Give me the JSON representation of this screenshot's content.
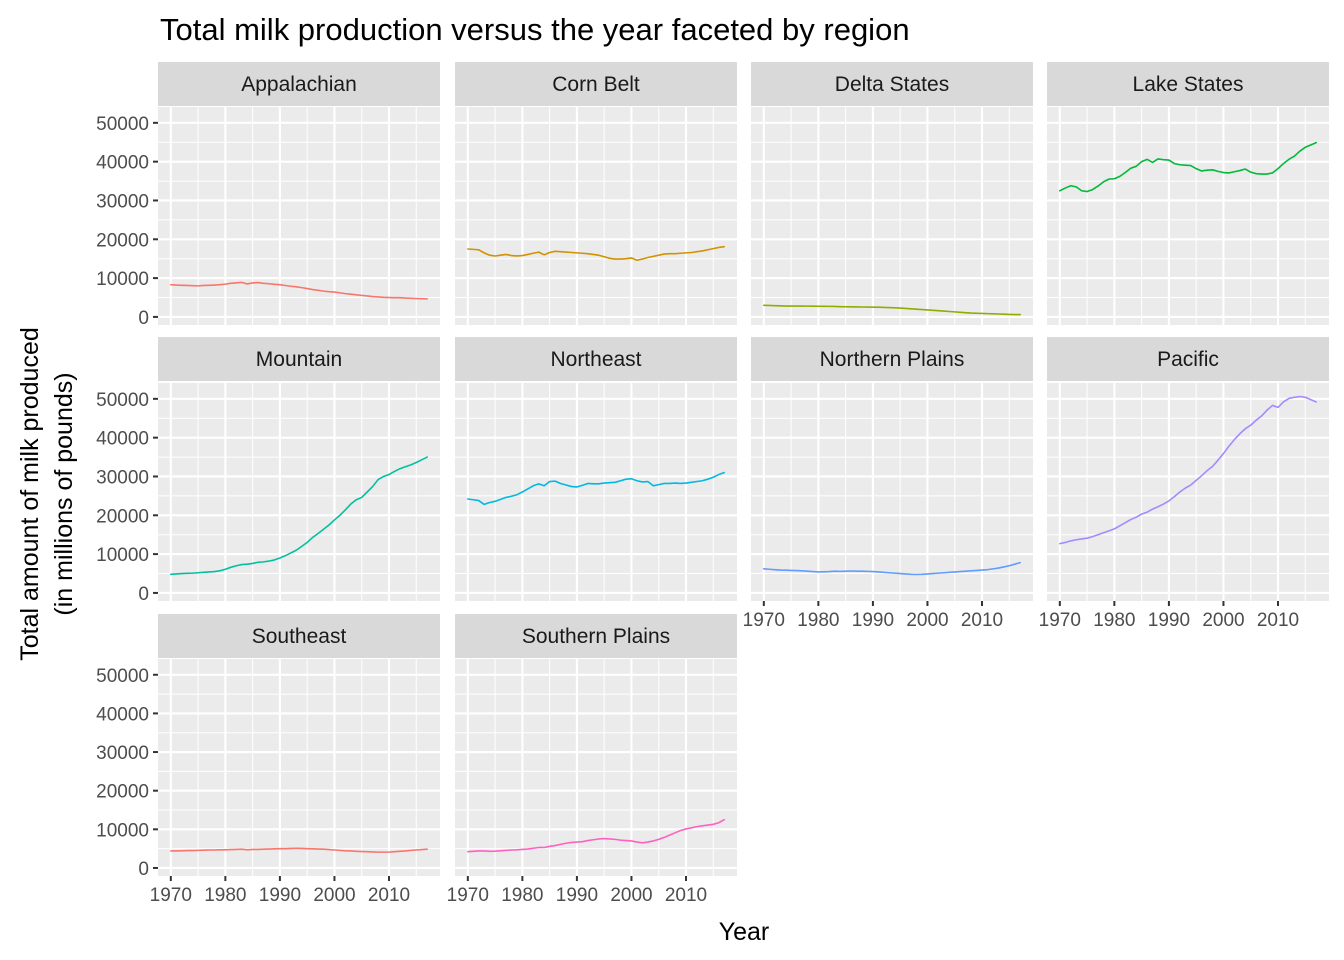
{
  "chart_data": {
    "type": "line",
    "title": "Total milk production versus the year faceted by region",
    "xlabel": "Year",
    "ylabel_lines": [
      "Total amount of milk produced",
      "(in millions of pounds)"
    ],
    "xlim": [
      1970,
      2017
    ],
    "ylim": [
      0,
      52000
    ],
    "x_ticks": [
      1970,
      1980,
      1990,
      2000,
      2010
    ],
    "y_ticks": [
      0,
      10000,
      20000,
      30000,
      40000,
      50000
    ],
    "x": [
      1970,
      1971,
      1972,
      1973,
      1974,
      1975,
      1976,
      1977,
      1978,
      1979,
      1980,
      1981,
      1982,
      1983,
      1984,
      1985,
      1986,
      1987,
      1988,
      1989,
      1990,
      1991,
      1992,
      1993,
      1994,
      1995,
      1996,
      1997,
      1998,
      1999,
      2000,
      2001,
      2002,
      2003,
      2004,
      2005,
      2006,
      2007,
      2008,
      2009,
      2010,
      2011,
      2012,
      2013,
      2014,
      2015,
      2016,
      2017
    ],
    "series": [
      {
        "name": "Appalachian",
        "color": "#F8766D",
        "values": [
          8300,
          8200,
          8150,
          8100,
          8050,
          8000,
          8100,
          8150,
          8200,
          8300,
          8450,
          8650,
          8800,
          8900,
          8500,
          8750,
          8850,
          8650,
          8550,
          8400,
          8300,
          8100,
          7900,
          7750,
          7550,
          7300,
          7050,
          6850,
          6650,
          6500,
          6400,
          6200,
          6000,
          5850,
          5700,
          5550,
          5400,
          5250,
          5150,
          5050,
          5000,
          4950,
          4950,
          4850,
          4800,
          4750,
          4700,
          4650
        ]
      },
      {
        "name": "Corn Belt",
        "color": "#D39200",
        "values": [
          17500,
          17400,
          17300,
          16500,
          15900,
          15700,
          15900,
          16100,
          15800,
          15700,
          15800,
          16100,
          16400,
          16700,
          16000,
          16600,
          16900,
          16800,
          16700,
          16600,
          16500,
          16400,
          16300,
          16100,
          15900,
          15500,
          15100,
          14900,
          14900,
          15000,
          15200,
          14600,
          14900,
          15300,
          15600,
          15900,
          16200,
          16300,
          16300,
          16400,
          16500,
          16600,
          16800,
          17000,
          17300,
          17600,
          17900,
          18100
        ]
      },
      {
        "name": "Delta States",
        "color": "#93AA00",
        "values": [
          3000,
          2950,
          2900,
          2850,
          2800,
          2800,
          2800,
          2800,
          2780,
          2760,
          2750,
          2740,
          2720,
          2700,
          2650,
          2620,
          2600,
          2580,
          2560,
          2540,
          2520,
          2500,
          2450,
          2400,
          2350,
          2280,
          2200,
          2100,
          2000,
          1900,
          1800,
          1700,
          1600,
          1500,
          1400,
          1300,
          1200,
          1100,
          1000,
          950,
          900,
          850,
          800,
          750,
          700,
          650,
          600,
          600
        ]
      },
      {
        "name": "Lake States",
        "color": "#00BA38",
        "values": [
          32500,
          33200,
          33800,
          33500,
          32500,
          32300,
          32800,
          33700,
          34800,
          35500,
          35600,
          36200,
          37200,
          38300,
          38800,
          40000,
          40600,
          39800,
          40700,
          40500,
          40400,
          39500,
          39200,
          39100,
          39000,
          38200,
          37600,
          37800,
          37900,
          37500,
          37200,
          37100,
          37400,
          37700,
          38100,
          37300,
          36900,
          36800,
          36800,
          37100,
          38200,
          39500,
          40600,
          41400,
          42700,
          43700,
          44300,
          44900
        ]
      },
      {
        "name": "Mountain",
        "color": "#00C19F",
        "values": [
          4800,
          4900,
          5000,
          5050,
          5100,
          5200,
          5300,
          5400,
          5500,
          5700,
          6100,
          6600,
          7000,
          7300,
          7400,
          7600,
          7900,
          8000,
          8200,
          8500,
          9000,
          9600,
          10300,
          11000,
          12000,
          13000,
          14300,
          15300,
          16400,
          17500,
          18800,
          20000,
          21400,
          22900,
          24000,
          24600,
          26000,
          27400,
          29200,
          30000,
          30500,
          31300,
          32000,
          32500,
          33000,
          33600,
          34300,
          35000
        ]
      },
      {
        "name": "Northeast",
        "color": "#00B9E3",
        "values": [
          24200,
          24000,
          23800,
          22800,
          23300,
          23600,
          24100,
          24600,
          24900,
          25300,
          26000,
          26800,
          27600,
          28100,
          27600,
          28700,
          28800,
          28200,
          27800,
          27400,
          27300,
          27700,
          28200,
          28100,
          28100,
          28300,
          28400,
          28500,
          28900,
          29300,
          29400,
          28900,
          28600,
          28700,
          27600,
          27900,
          28200,
          28200,
          28300,
          28200,
          28300,
          28500,
          28700,
          28900,
          29300,
          29800,
          30500,
          31000
        ]
      },
      {
        "name": "Northern Plains",
        "color": "#619CFF",
        "values": [
          6200,
          6100,
          6000,
          5900,
          5850,
          5800,
          5750,
          5700,
          5600,
          5500,
          5400,
          5450,
          5500,
          5600,
          5550,
          5600,
          5650,
          5600,
          5600,
          5550,
          5500,
          5400,
          5300,
          5200,
          5100,
          5000,
          4900,
          4800,
          4750,
          4800,
          4900,
          5000,
          5100,
          5200,
          5300,
          5400,
          5500,
          5600,
          5700,
          5800,
          5900,
          6000,
          6200,
          6400,
          6700,
          7000,
          7400,
          7800
        ]
      },
      {
        "name": "Pacific",
        "color": "#A58AFF",
        "values": [
          12700,
          13000,
          13400,
          13700,
          13900,
          14100,
          14500,
          15000,
          15500,
          16000,
          16500,
          17300,
          18100,
          18900,
          19500,
          20300,
          20800,
          21600,
          22200,
          22900,
          23700,
          24800,
          26000,
          27000,
          27800,
          29000,
          30200,
          31500,
          32600,
          34200,
          35900,
          37800,
          39500,
          41000,
          42300,
          43200,
          44500,
          45600,
          47100,
          48300,
          47800,
          49200,
          50100,
          50400,
          50600,
          50400,
          49800,
          49200
        ]
      },
      {
        "name": "Southeast",
        "color": "#F8766D",
        "values": [
          4400,
          4400,
          4450,
          4500,
          4500,
          4550,
          4600,
          4650,
          4650,
          4700,
          4700,
          4750,
          4800,
          4850,
          4700,
          4800,
          4800,
          4850,
          4900,
          4950,
          5000,
          5000,
          5050,
          5100,
          5050,
          5000,
          4950,
          4900,
          4850,
          4750,
          4650,
          4550,
          4450,
          4400,
          4300,
          4250,
          4200,
          4150,
          4100,
          4100,
          4100,
          4200,
          4300,
          4400,
          4550,
          4650,
          4750,
          4850
        ]
      },
      {
        "name": "Southern Plains",
        "color": "#FF61C3",
        "values": [
          4200,
          4300,
          4400,
          4400,
          4300,
          4350,
          4450,
          4550,
          4650,
          4700,
          4800,
          4900,
          5100,
          5300,
          5300,
          5600,
          5800,
          6100,
          6400,
          6600,
          6700,
          6800,
          7100,
          7300,
          7500,
          7600,
          7500,
          7400,
          7200,
          7100,
          7000,
          6700,
          6500,
          6700,
          7000,
          7400,
          7900,
          8500,
          9100,
          9700,
          10100,
          10400,
          10700,
          10900,
          11100,
          11300,
          11700,
          12500
        ]
      }
    ]
  }
}
